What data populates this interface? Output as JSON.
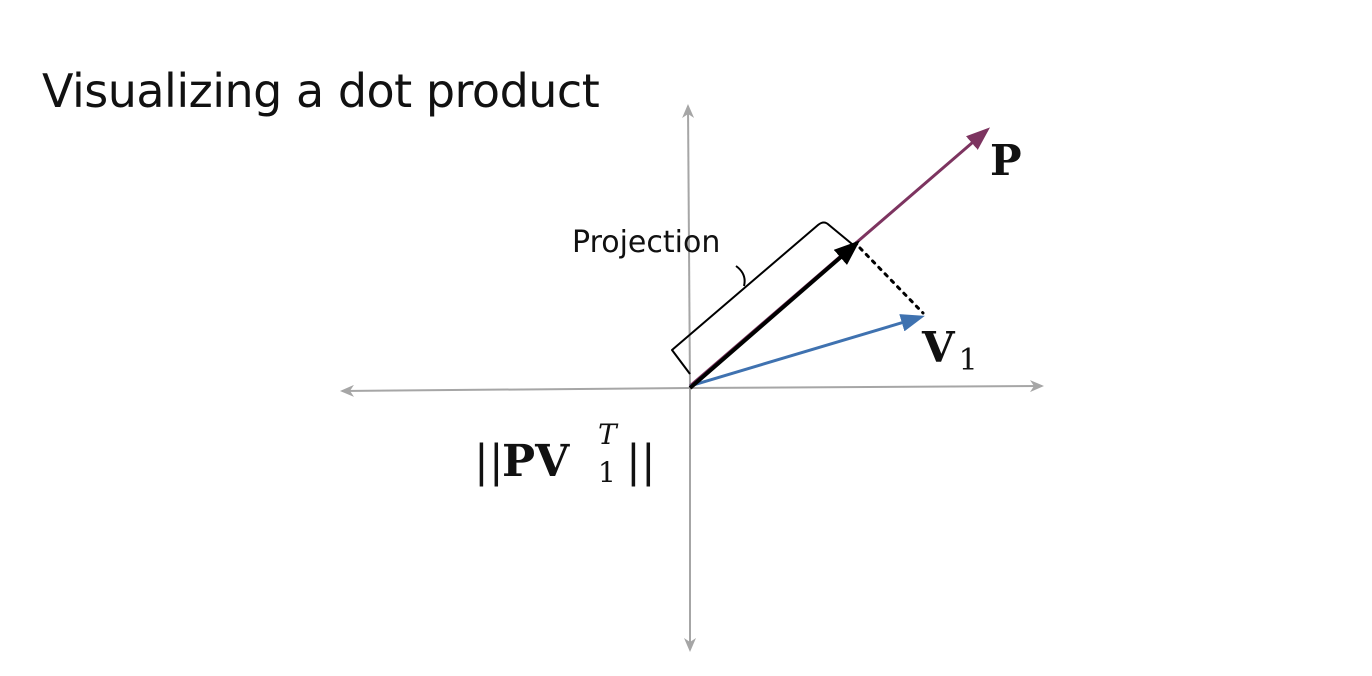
{
  "slide": {
    "title": "Visualizing a dot product"
  },
  "diagram": {
    "vector_p_label": "P",
    "vector_v1_label": "V",
    "vector_v1_subscript": "1",
    "projection_label": "Projection",
    "norm_formula": {
      "open_bars": "||",
      "body": "PV",
      "superscript": "T",
      "subscript": "1",
      "close_bars": "||"
    },
    "colors": {
      "axis": "#a6a6a6",
      "vector_p": "#7d3460",
      "vector_v1": "#3f72b0",
      "projection": "#000000",
      "dotted_line": "#000000",
      "bracket": "#000000"
    }
  }
}
